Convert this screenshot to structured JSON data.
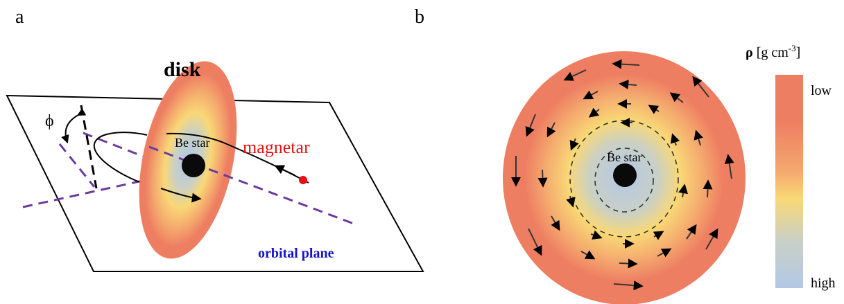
{
  "panel_a": {
    "label": "a",
    "disk_label": "disk",
    "star_label": "Be star",
    "magnetar_label": "magnetar",
    "phi_label": "ϕ",
    "plane_label": "orbital plane"
  },
  "panel_b": {
    "label": "b",
    "star_label": "Be star",
    "colorbar": {
      "title_symbol": "ρ",
      "title_unit_base": " [g cm",
      "title_unit_exp": "-3",
      "title_unit_close": "]",
      "low_label": "low",
      "high_label": "high"
    }
  },
  "colors": {
    "disk_outer": "#ee7e62",
    "disk_mid": "#f9d876",
    "disk_inner": "#b3c8e6",
    "star": "#0a0a0a",
    "magnetar": "#e21414",
    "magnetar_text": "#e21414",
    "plane_text": "#1414c8",
    "dashed_axis": "#6a3aa0",
    "arrows": "#333333"
  }
}
